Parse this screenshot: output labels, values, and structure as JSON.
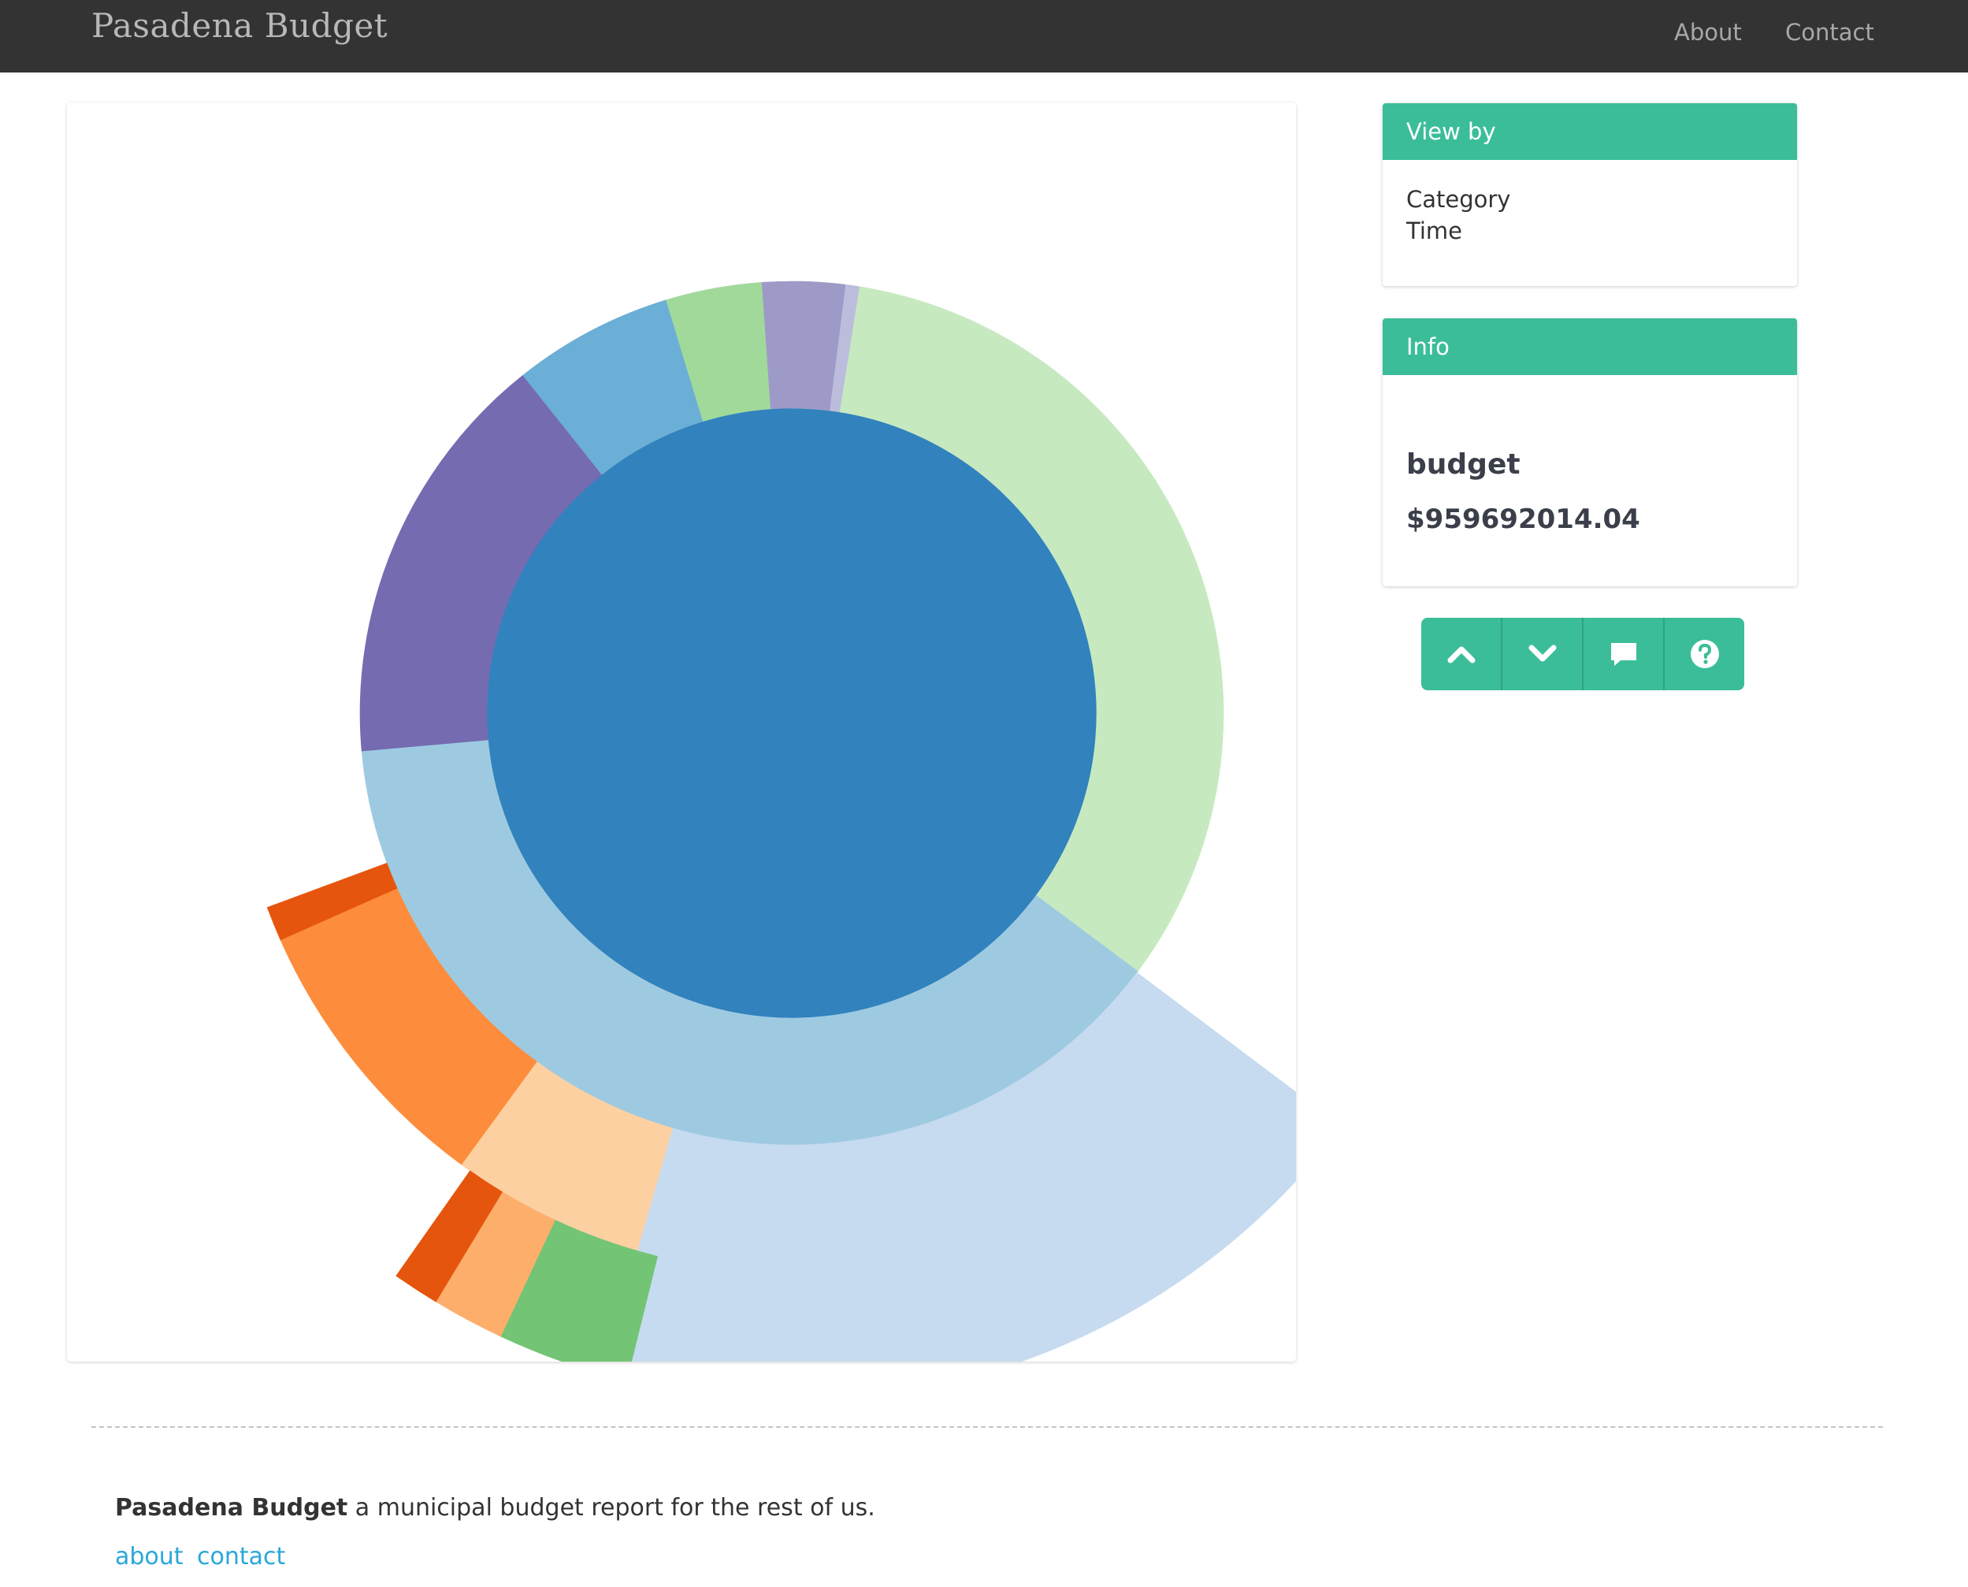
{
  "navbar": {
    "brand": "Pasadena Budget",
    "links": [
      {
        "label": "About"
      },
      {
        "label": "Contact"
      }
    ]
  },
  "sidebar": {
    "view_by": {
      "title": "View by",
      "options": [
        "Category",
        "Time"
      ]
    },
    "info": {
      "title": "Info",
      "name": "budget",
      "value": "$959692014.04"
    },
    "buttons": [
      {
        "icon": "chevron-up-icon"
      },
      {
        "icon": "chevron-down-icon"
      },
      {
        "icon": "comment-icon"
      },
      {
        "icon": "question-icon"
      }
    ]
  },
  "chart_data": {
    "type": "sunburst",
    "root": {
      "name": "budget",
      "value": 959692014.04,
      "color": "#3182bd"
    },
    "ring1": [
      {
        "share": 0.352,
        "color": "#c7e9c0"
      },
      {
        "share": 0.384,
        "color": "#9ecae1"
      },
      {
        "share": 0.157,
        "color": "#756bb1"
      },
      {
        "share": 0.06,
        "color": "#6baed6"
      },
      {
        "share": 0.036,
        "color": "#a1d99b"
      },
      {
        "share": 0.031,
        "color": "#9e9ac8"
      },
      {
        "share": 0.005,
        "color": "#bcbddc"
      }
    ],
    "ring2": [
      {
        "share": 0.192,
        "color": "#c6dbef"
      },
      {
        "share": 0.056,
        "color": "#fdd0a2"
      },
      {
        "share": 0.083,
        "color": "#fd8d3c"
      },
      {
        "share": 0.01,
        "color": "#e6550d"
      }
    ],
    "ring3": [
      {
        "share": 0.186,
        "color": "#c6dbef"
      },
      {
        "share": 0.031,
        "color": "#74c476"
      },
      {
        "share": 0.017,
        "color": "#fdae6b"
      },
      {
        "share": 0.011,
        "color": "#e6550d"
      }
    ],
    "colors": {
      "accent": "#3bbd99",
      "navbar": "#333333",
      "link": "#2aa7d8"
    }
  },
  "footer": {
    "brand": "Pasadena Budget",
    "tagline": " a municipal budget report for the rest of us.",
    "links": [
      {
        "label": "about"
      },
      {
        "label": "contact"
      }
    ]
  }
}
